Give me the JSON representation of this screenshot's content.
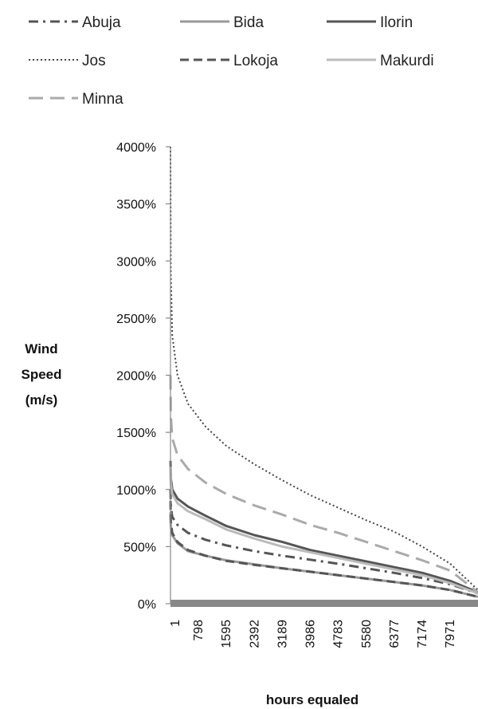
{
  "chart_data": {
    "type": "line",
    "ylabel_lines": [
      "Wind",
      "Speed",
      "(m/s)"
    ],
    "xlabel": "hours equaled",
    "yticks": [
      "0%",
      "500%",
      "1000%",
      "1500%",
      "2000%",
      "2500%",
      "3000%",
      "3500%",
      "4000%"
    ],
    "ylim": [
      0,
      4000
    ],
    "x_tick_labels": [
      "1",
      "798",
      "1595",
      "2392",
      "3189",
      "3986",
      "4783",
      "5580",
      "6377",
      "7174",
      "7971"
    ],
    "xlim": [
      1,
      8760
    ],
    "legend_position": "top",
    "grid": false,
    "series": [
      {
        "name": "Abuja",
        "color": "#555555",
        "dash": "dashdot",
        "width": 3,
        "x": [
          1,
          10,
          50,
          200,
          500,
          1000,
          1595,
          2392,
          3189,
          3986,
          4783,
          5580,
          6377,
          7174,
          7971,
          8760
        ],
        "y": [
          1000,
          850,
          760,
          690,
          620,
          560,
          510,
          460,
          420,
          385,
          350,
          310,
          270,
          225,
          170,
          90
        ]
      },
      {
        "name": "Bida",
        "color": "#999999",
        "dash": "solid",
        "width": 3,
        "x": [
          1,
          10,
          50,
          200,
          500,
          1000,
          1595,
          2392,
          3189,
          3986,
          4783,
          5580,
          6377,
          7174,
          7971,
          8760
        ],
        "y": [
          800,
          680,
          600,
          530,
          460,
          420,
          380,
          345,
          310,
          280,
          250,
          220,
          190,
          160,
          120,
          60
        ]
      },
      {
        "name": "Ilorin",
        "color": "#555555",
        "dash": "solid",
        "width": 3,
        "x": [
          1,
          10,
          50,
          200,
          500,
          1000,
          1595,
          2392,
          3189,
          3986,
          4783,
          5580,
          6377,
          7174,
          7971,
          8760
        ],
        "y": [
          1250,
          1100,
          1000,
          920,
          850,
          770,
          680,
          600,
          540,
          470,
          420,
          370,
          320,
          270,
          200,
          100
        ]
      },
      {
        "name": "Jos",
        "color": "#444444",
        "dash": "dotted",
        "width": 2,
        "x": [
          1,
          10,
          50,
          200,
          500,
          1000,
          1595,
          2392,
          3189,
          3986,
          4783,
          5580,
          6377,
          7174,
          7971,
          8760
        ],
        "y": [
          4000,
          2900,
          2350,
          2000,
          1750,
          1550,
          1380,
          1220,
          1080,
          950,
          840,
          730,
          630,
          500,
          350,
          120
        ]
      },
      {
        "name": "Lokoja",
        "color": "#555555",
        "dash": "dashed",
        "width": 3,
        "x": [
          1,
          10,
          50,
          200,
          500,
          1000,
          1595,
          2392,
          3189,
          3986,
          4783,
          5580,
          6377,
          7174,
          7971,
          8760
        ],
        "y": [
          900,
          720,
          620,
          540,
          470,
          420,
          375,
          340,
          310,
          280,
          250,
          220,
          190,
          160,
          120,
          60
        ]
      },
      {
        "name": "Makurdi",
        "color": "#bbbbbb",
        "dash": "solid",
        "width": 3,
        "x": [
          1,
          10,
          50,
          200,
          500,
          1000,
          1595,
          2392,
          3189,
          3986,
          4783,
          5580,
          6377,
          7174,
          7971,
          8760
        ],
        "y": [
          1200,
          1050,
          960,
          880,
          810,
          740,
          650,
          570,
          500,
          450,
          400,
          350,
          300,
          250,
          180,
          90
        ]
      },
      {
        "name": "Minna",
        "color": "#aaaaaa",
        "dash": "longdash",
        "width": 3,
        "x": [
          1,
          10,
          50,
          200,
          500,
          1000,
          1595,
          2392,
          3189,
          3986,
          4783,
          5580,
          6377,
          7174,
          7971,
          8760
        ],
        "y": [
          2000,
          1650,
          1450,
          1300,
          1180,
          1060,
          960,
          860,
          780,
          690,
          620,
          540,
          460,
          380,
          290,
          100
        ]
      }
    ]
  }
}
